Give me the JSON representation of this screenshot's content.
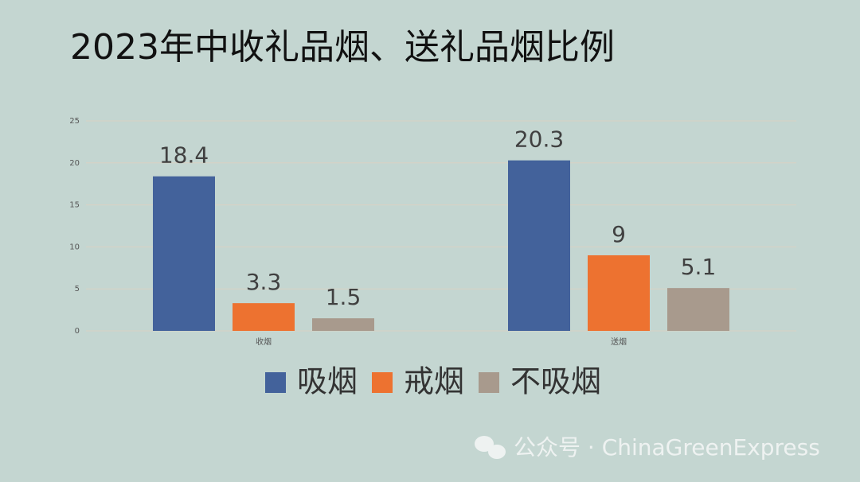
{
  "chart_data": {
    "type": "bar",
    "title": "2023年中收礼品烟、送礼品烟比例",
    "categories": [
      "收烟",
      "送烟"
    ],
    "series": [
      {
        "name": "吸烟",
        "color": "#43629b",
        "values": [
          18.4,
          20.3
        ]
      },
      {
        "name": "戒烟",
        "color": "#ed7230",
        "values": [
          3.3,
          9
        ]
      },
      {
        "name": "不吸烟",
        "color": "#a89a8d",
        "values": [
          1.5,
          5.1
        ]
      }
    ],
    "ylim": [
      0,
      25
    ],
    "yticks": [
      0,
      5,
      10,
      15,
      20,
      25
    ],
    "grid": true,
    "legend": "bottom",
    "watermark": "公众号 · ChinaGreenExpress"
  }
}
